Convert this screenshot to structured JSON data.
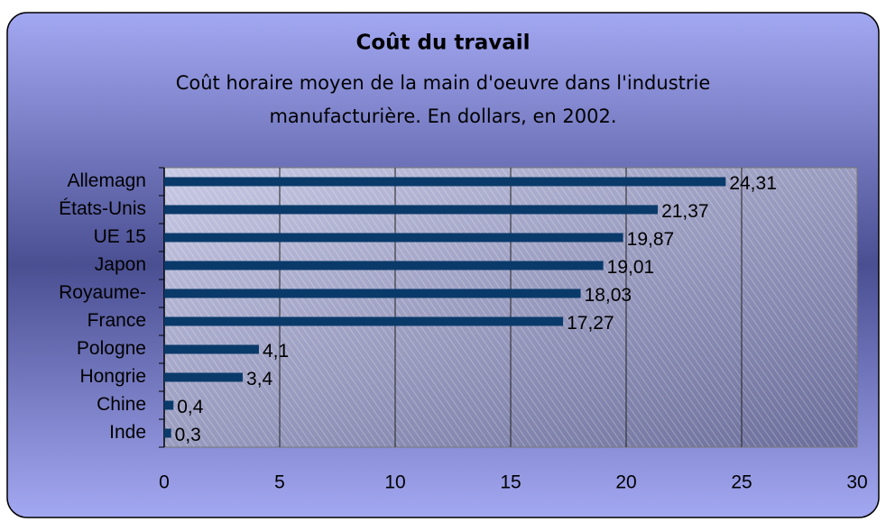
{
  "chart_data": {
    "type": "bar",
    "orientation": "horizontal",
    "title": "Coût du travail",
    "subtitle": [
      "Coût horaire moyen de la main d'oeuvre dans l'industrie",
      "manufacturière. En dollars, en 2002."
    ],
    "categories": [
      "Allemagn",
      "États-Unis",
      "UE 15",
      "Japon",
      "Royaume-",
      "France",
      "Pologne",
      "Hongrie",
      "Chine",
      "Inde"
    ],
    "values": [
      24.31,
      21.37,
      19.87,
      19.01,
      18.03,
      17.27,
      4.1,
      3.4,
      0.4,
      0.3
    ],
    "value_labels": [
      "24,31",
      "21,37",
      "19,87",
      "19,01",
      "18,03",
      "17,27",
      "4,1",
      "3,4",
      "0,4",
      "0,3"
    ],
    "color": "#0a3a6a",
    "xlim": [
      0,
      30
    ],
    "xticks": [
      0,
      5,
      10,
      15,
      20,
      25,
      30
    ],
    "grid": true
  }
}
